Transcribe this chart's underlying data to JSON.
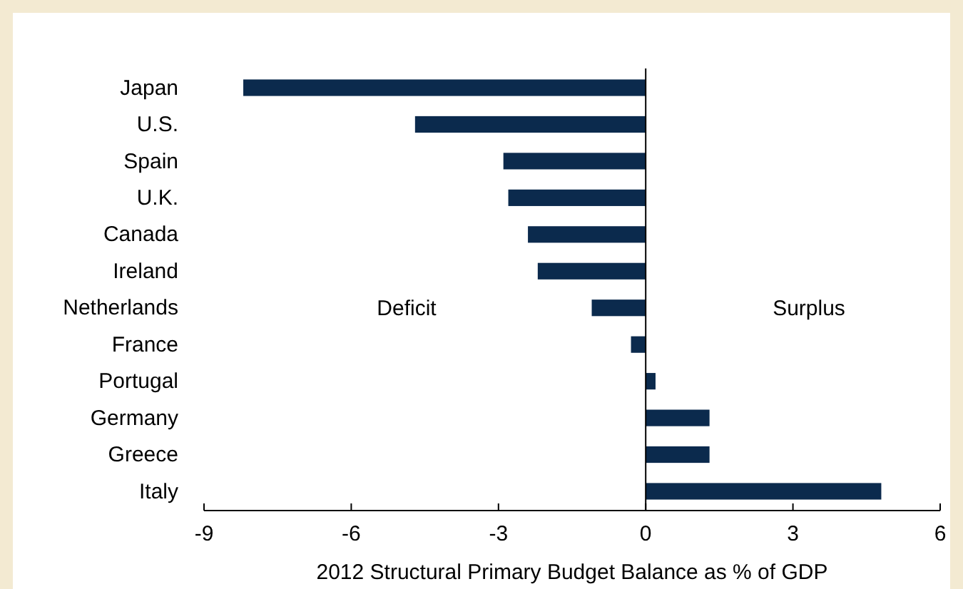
{
  "chart_data": {
    "type": "bar",
    "orientation": "horizontal",
    "xlabel": "2012 Structural Primary Budget Balance as % of GDP",
    "categories": [
      "Japan",
      "U.S.",
      "Spain",
      "U.K.",
      "Canada",
      "Ireland",
      "Netherlands",
      "France",
      "Portugal",
      "Germany",
      "Greece",
      "Italy"
    ],
    "values": [
      -8.2,
      -4.7,
      -2.9,
      -2.8,
      -2.4,
      -2.2,
      -1.1,
      -0.3,
      0.2,
      1.3,
      1.3,
      4.8
    ],
    "color": "#0b2a4d",
    "xlim": [
      -9,
      6
    ],
    "xticks": [
      -9,
      -6,
      -3,
      0,
      3,
      6
    ],
    "annotations": [
      "Deficit",
      "Surplus"
    ]
  }
}
